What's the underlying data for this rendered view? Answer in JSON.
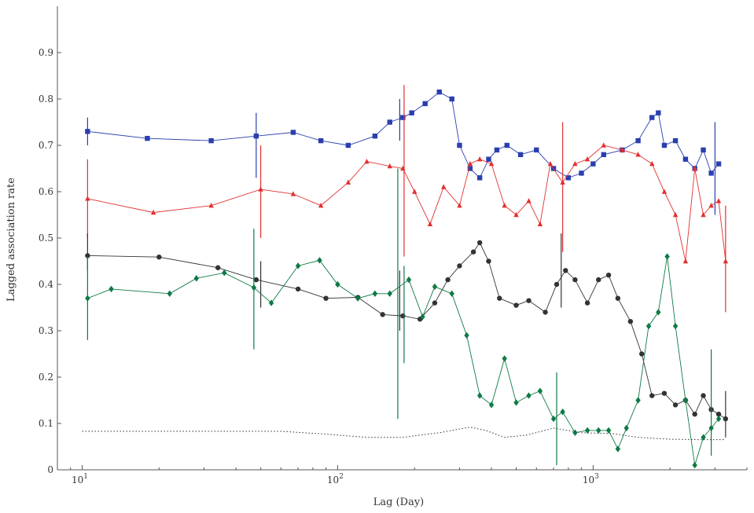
{
  "chart_data": {
    "type": "line",
    "xscale": "log",
    "xlim": [
      8,
      4000
    ],
    "ylim": [
      0,
      1
    ],
    "xlabel": "Lag (Day)",
    "ylabel": "Lagged association rate",
    "x_ticks": [
      {
        "value": 10,
        "base": "10",
        "exp": "1"
      },
      {
        "value": 100,
        "base": "10",
        "exp": "2"
      },
      {
        "value": 1000,
        "base": "10",
        "exp": "3"
      }
    ],
    "y_ticks": [
      "0",
      "0.1",
      "0.2",
      "0.3",
      "0.4",
      "0.5",
      "0.6",
      "0.7",
      "0.8",
      "0.9"
    ],
    "series": [
      {
        "color": "#2a3fae",
        "marker": "square",
        "x": [
          10.5,
          18,
          32,
          48,
          67,
          86,
          110,
          140,
          160,
          180,
          195,
          220,
          250,
          280,
          300,
          330,
          360,
          390,
          420,
          460,
          520,
          600,
          700,
          800,
          900,
          1000,
          1100,
          1300,
          1500,
          1700,
          1800,
          1900,
          2100,
          2300,
          2500,
          2700,
          2900,
          3100
        ],
        "y": [
          0.73,
          0.715,
          0.71,
          0.72,
          0.728,
          0.71,
          0.7,
          0.72,
          0.75,
          0.76,
          0.77,
          0.79,
          0.815,
          0.8,
          0.7,
          0.65,
          0.63,
          0.67,
          0.69,
          0.7,
          0.68,
          0.69,
          0.65,
          0.63,
          0.64,
          0.66,
          0.68,
          0.69,
          0.71,
          0.76,
          0.77,
          0.7,
          0.71,
          0.67,
          0.65,
          0.69,
          0.64,
          0.66
        ],
        "errorbars": [
          {
            "x": 10.5,
            "lo": 0.7,
            "hi": 0.76
          },
          {
            "x": 48,
            "lo": 0.63,
            "hi": 0.77
          },
          {
            "x": 175,
            "lo": 0.71,
            "hi": 0.8
          },
          {
            "x": 3000,
            "lo": 0.55,
            "hi": 0.75
          }
        ]
      },
      {
        "color": "#e23030",
        "marker": "triangle",
        "x": [
          10.5,
          19,
          32,
          50,
          67,
          86,
          110,
          130,
          160,
          180,
          200,
          230,
          260,
          300,
          330,
          360,
          400,
          450,
          500,
          560,
          620,
          680,
          760,
          850,
          950,
          1100,
          1300,
          1500,
          1700,
          1900,
          2100,
          2300,
          2500,
          2700,
          2900,
          3100,
          3300
        ],
        "y": [
          0.585,
          0.555,
          0.57,
          0.605,
          0.595,
          0.57,
          0.62,
          0.665,
          0.655,
          0.65,
          0.6,
          0.53,
          0.61,
          0.57,
          0.66,
          0.67,
          0.66,
          0.57,
          0.55,
          0.58,
          0.53,
          0.66,
          0.62,
          0.66,
          0.67,
          0.7,
          0.69,
          0.68,
          0.66,
          0.6,
          0.55,
          0.45,
          0.65,
          0.55,
          0.57,
          0.58,
          0.45
        ],
        "errorbars": [
          {
            "x": 10.5,
            "lo": 0.5,
            "hi": 0.67
          },
          {
            "x": 50,
            "lo": 0.5,
            "hi": 0.7
          },
          {
            "x": 182,
            "lo": 0.46,
            "hi": 0.83
          },
          {
            "x": 760,
            "lo": 0.47,
            "hi": 0.75
          },
          {
            "x": 3300,
            "lo": 0.34,
            "hi": 0.57
          }
        ]
      },
      {
        "color": "#333333",
        "marker": "circle",
        "x": [
          10.5,
          20,
          34,
          48,
          70,
          90,
          120,
          150,
          180,
          210,
          240,
          270,
          300,
          340,
          360,
          390,
          430,
          500,
          560,
          650,
          720,
          780,
          850,
          950,
          1050,
          1150,
          1250,
          1400,
          1550,
          1700,
          1900,
          2100,
          2300,
          2500,
          2700,
          2900,
          3100,
          3300
        ],
        "y": [
          0.462,
          0.459,
          0.436,
          0.41,
          0.39,
          0.37,
          0.372,
          0.335,
          0.332,
          0.325,
          0.36,
          0.41,
          0.44,
          0.47,
          0.49,
          0.45,
          0.37,
          0.355,
          0.365,
          0.34,
          0.4,
          0.43,
          0.41,
          0.36,
          0.41,
          0.42,
          0.37,
          0.32,
          0.25,
          0.16,
          0.165,
          0.14,
          0.15,
          0.12,
          0.16,
          0.13,
          0.12,
          0.11
        ],
        "errorbars": [
          {
            "x": 10.5,
            "lo": 0.43,
            "hi": 0.51
          },
          {
            "x": 50,
            "lo": 0.35,
            "hi": 0.45
          },
          {
            "x": 175,
            "lo": 0.3,
            "hi": 0.43
          },
          {
            "x": 750,
            "lo": 0.35,
            "hi": 0.51
          },
          {
            "x": 3300,
            "lo": 0.07,
            "hi": 0.17
          }
        ]
      },
      {
        "color": "#0e7a45",
        "marker": "diamond",
        "x": [
          10.5,
          13,
          22,
          28,
          36,
          47,
          55,
          70,
          85,
          100,
          120,
          140,
          160,
          190,
          215,
          240,
          280,
          320,
          360,
          400,
          450,
          500,
          560,
          620,
          700,
          760,
          850,
          950,
          1050,
          1150,
          1250,
          1350,
          1500,
          1650,
          1800,
          1950,
          2100,
          2300,
          2500,
          2700,
          2900,
          3100
        ],
        "y": [
          0.37,
          0.39,
          0.38,
          0.413,
          0.425,
          0.393,
          0.36,
          0.44,
          0.452,
          0.4,
          0.37,
          0.38,
          0.38,
          0.41,
          0.33,
          0.395,
          0.38,
          0.29,
          0.16,
          0.14,
          0.24,
          0.145,
          0.16,
          0.17,
          0.11,
          0.125,
          0.08,
          0.085,
          0.085,
          0.085,
          0.045,
          0.09,
          0.15,
          0.31,
          0.34,
          0.46,
          0.31,
          0.15,
          0.01,
          0.07,
          0.09,
          0.11
        ],
        "errorbars": [
          {
            "x": 10.5,
            "lo": 0.28,
            "hi": 0.46
          },
          {
            "x": 47,
            "lo": 0.26,
            "hi": 0.52
          },
          {
            "x": 172,
            "lo": 0.11,
            "hi": 0.65
          },
          {
            "x": 182,
            "lo": 0.23,
            "hi": 0.44
          },
          {
            "x": 720,
            "lo": 0.01,
            "hi": 0.21
          },
          {
            "x": 2900,
            "lo": 0.03,
            "hi": 0.26
          }
        ]
      },
      {
        "color": "#333333",
        "marker": "none",
        "style": "dotted",
        "x": [
          10,
          20,
          40,
          60,
          90,
          130,
          180,
          250,
          330,
          380,
          450,
          550,
          700,
          900,
          1200,
          1500,
          2000,
          2600,
          3300
        ],
        "y": [
          0.083,
          0.083,
          0.083,
          0.083,
          0.077,
          0.07,
          0.07,
          0.08,
          0.092,
          0.085,
          0.07,
          0.075,
          0.09,
          0.08,
          0.078,
          0.07,
          0.066,
          0.065,
          0.065
        ]
      }
    ]
  }
}
